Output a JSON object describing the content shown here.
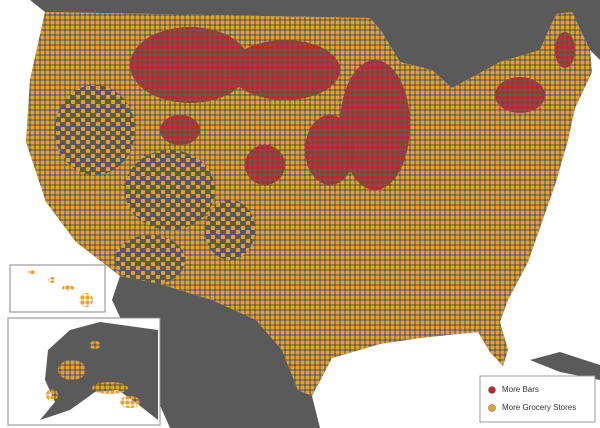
{
  "legend": {
    "items": [
      {
        "label": "More Bars",
        "color": "#c2262b"
      },
      {
        "label": "More Grocery Stores",
        "color": "#e6a12c"
      }
    ]
  }
}
